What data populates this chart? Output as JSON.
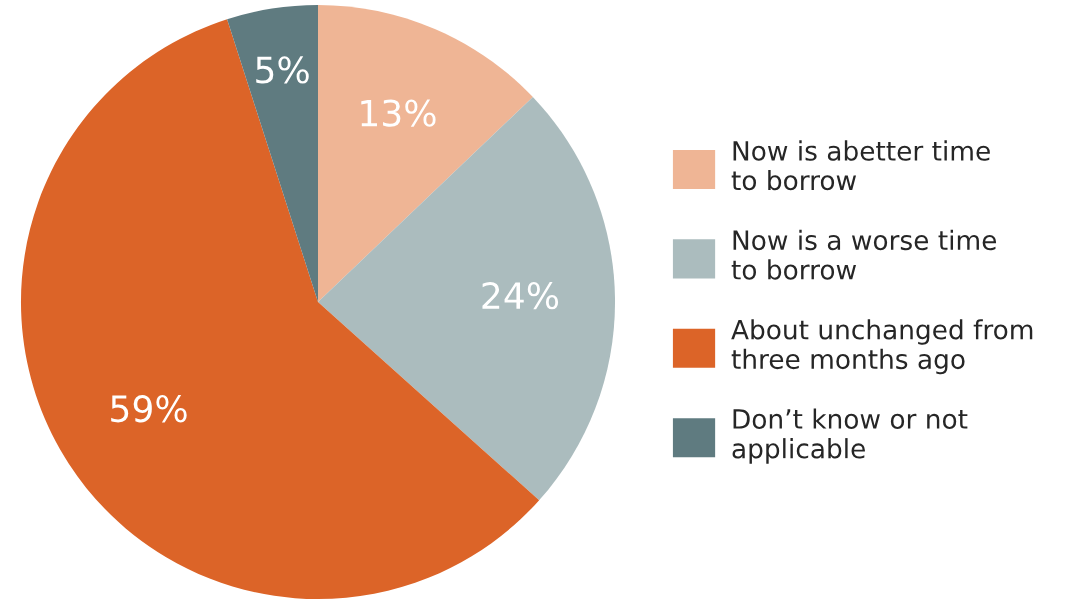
{
  "chart_data": {
    "type": "pie",
    "categories": [
      "Now is abetter time to borrow",
      "Now is a worse time to borrow",
      "About unchanged from three months ago",
      "Don’t know or not applicable"
    ],
    "values": [
      13,
      24,
      59,
      5
    ],
    "value_labels": [
      "13%",
      "24%",
      "59%",
      "5%"
    ],
    "colors": [
      "#efb595",
      "#abbcbe",
      "#dc6428",
      "#5f7b80"
    ],
    "legend": "right"
  }
}
